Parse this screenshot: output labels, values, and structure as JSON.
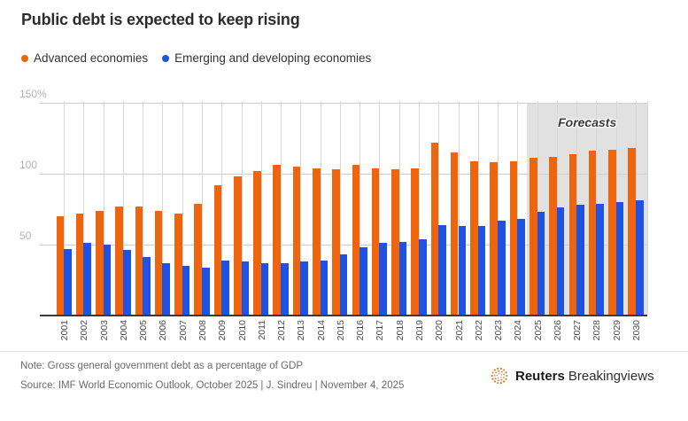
{
  "title": "Public debt is expected to keep rising",
  "legend": [
    {
      "label": "Advanced economies",
      "color": "#ee650d"
    },
    {
      "label": "Emerging and developing economies",
      "color": "#1d52e3"
    }
  ],
  "chart_data": {
    "type": "bar",
    "categories": [
      "2001",
      "2002",
      "2003",
      "2004",
      "2005",
      "2006",
      "2007",
      "2008",
      "2009",
      "2010",
      "2011",
      "2012",
      "2013",
      "2014",
      "2015",
      "2016",
      "2017",
      "2018",
      "2019",
      "2020",
      "2021",
      "2022",
      "2023",
      "2024",
      "2025",
      "2026",
      "2027",
      "2028",
      "2029",
      "2030"
    ],
    "series": [
      {
        "name": "Advanced economies",
        "color": "#ee650d",
        "values": [
          70,
          72,
          74,
          77,
          77,
          74,
          72,
          79,
          92,
          98,
          102,
          106,
          105,
          104,
          103,
          106,
          104,
          103,
          104,
          122,
          115,
          109,
          108,
          109,
          111,
          112,
          114,
          116,
          117,
          118
        ]
      },
      {
        "name": "Emerging and developing economies",
        "color": "#1d52e3",
        "values": [
          47,
          51,
          50,
          46,
          41,
          37,
          35,
          34,
          39,
          38,
          37,
          37,
          38,
          39,
          43,
          48,
          51,
          52,
          54,
          64,
          63,
          63,
          67,
          68,
          73,
          76,
          78,
          79,
          80,
          81
        ]
      }
    ],
    "title": "Public debt is expected to keep rising",
    "xlabel": "",
    "ylabel": "",
    "ylim": [
      0,
      150
    ],
    "yticks": [
      {
        "value": 150,
        "label": "150%"
      },
      {
        "value": 100,
        "label": "100"
      },
      {
        "value": 50,
        "label": "50"
      }
    ],
    "grid": true,
    "legend_position": "top",
    "forecast_start_year": "2025",
    "forecast_label": "Forecasts",
    "forecast_shade_color": "#e1e1e1"
  },
  "footer": {
    "note": "Note: Gross general government debt as a percentage of GDP",
    "source": "Source: IMF World Economic Outlook, October 2025 | J. Sindreu | November 4, 2025",
    "brand_bold": "Reuters",
    "brand_regular": "Breakingviews"
  },
  "colors": {
    "advanced": "#ee650d",
    "emerging": "#1d52e3",
    "gridline": "#cfcfcf",
    "axis": "#3a3a3a",
    "forecast_shade": "#e1e1e1",
    "logo_orange": "#e87722"
  }
}
